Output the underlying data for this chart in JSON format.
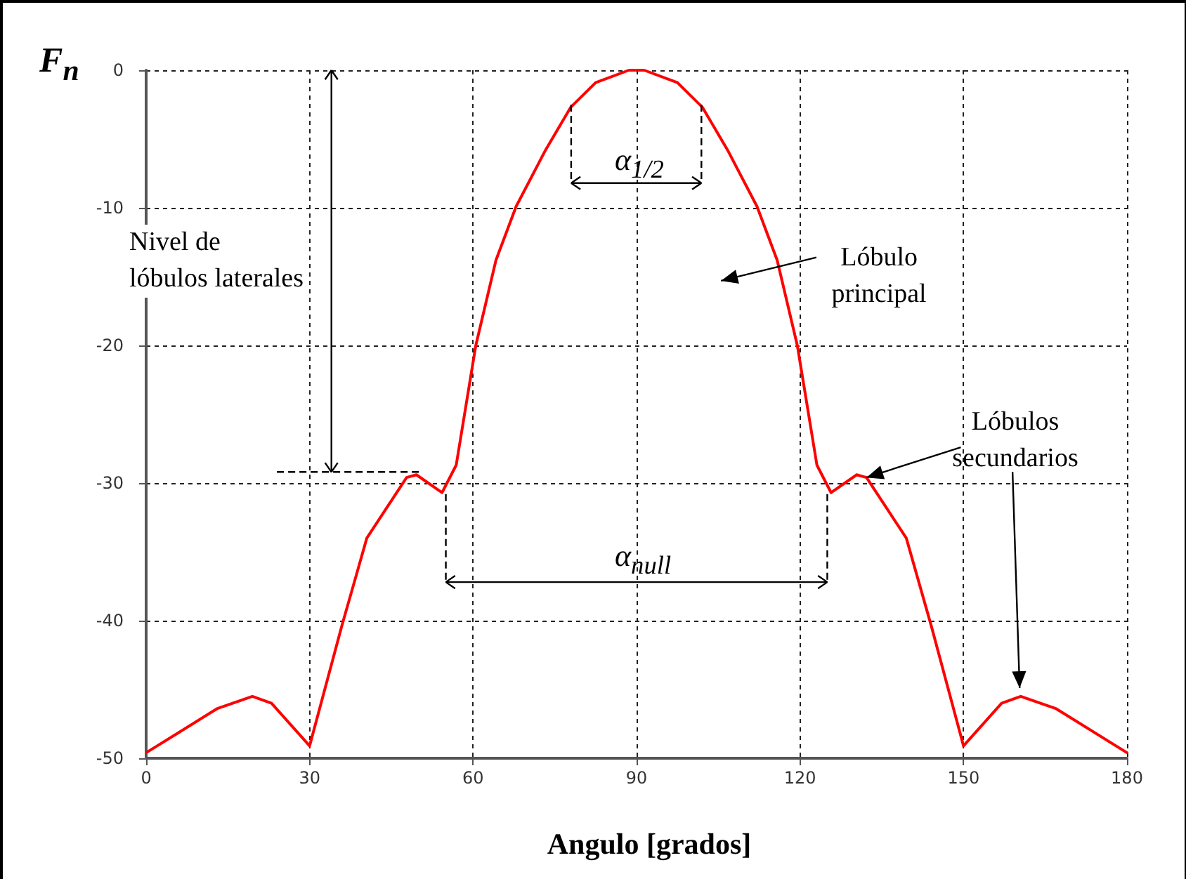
{
  "chart_data": {
    "type": "line",
    "ylabel": "F$_{n}$",
    "xlabel": "Angulo [grados]",
    "annotations": [
      "Nivel de lóbulos laterales",
      "Lóbulo principal",
      {
        "text": "Lóbulos secundarios",
        "x": 132.2,
        "y": -29.6
      },
      "α$_{1/2}$",
      "α$_{null}$"
    ],
    "x": [
      0,
      13,
      19.5,
      23,
      30,
      35.9,
      40.5,
      47.8,
      49.6,
      54.3,
      56.9,
      60.5,
      64.2,
      67.9,
      73.3,
      77.9,
      82.5,
      88.6,
      90,
      91.4,
      97.5,
      102.1,
      106.7,
      112.1,
      115.8,
      119.5,
      123.1,
      125.7,
      130.4,
      132.2,
      139.5,
      144.1,
      150,
      157,
      160.5,
      167,
      180
    ],
    "series": [
      {
        "color": "#ff0000",
        "values": [
          -49.6,
          -46.4,
          -45.5,
          -46,
          -49.1,
          -40.4,
          -34,
          -29.6,
          -29.4,
          -30.7,
          -28.7,
          -20,
          -13.8,
          -9.9,
          -5.8,
          -2.7,
          -0.9,
          0,
          0,
          0,
          -0.9,
          -2.7,
          -5.8,
          -9.9,
          -13.8,
          -20,
          -28.7,
          -30.7,
          -29.4,
          -29.6,
          -34,
          -40.4,
          -49.1,
          -46,
          -45.5,
          -46.4,
          -49.6
        ]
      }
    ],
    "xlim": [
      0,
      180
    ],
    "xticks": [
      0,
      30,
      60,
      90,
      120,
      150,
      180
    ],
    "ylim": [
      -50,
      0
    ],
    "yticks": [
      -50,
      -40,
      -30,
      -20,
      -10,
      0
    ],
    "grid": true,
    "marker": "none",
    "line_style": "solid"
  }
}
